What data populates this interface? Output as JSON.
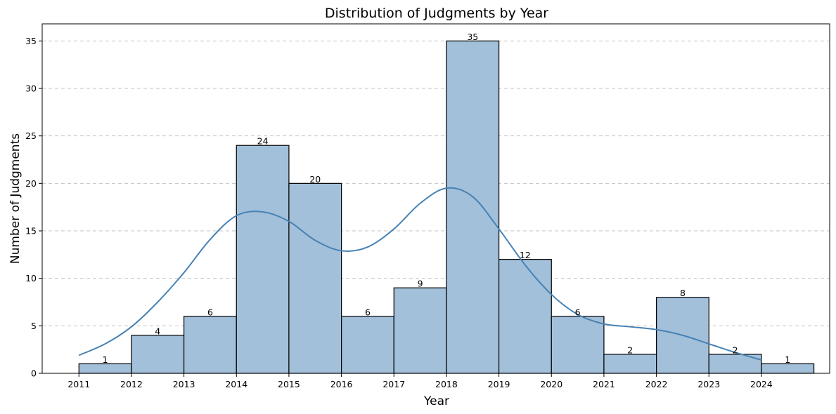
{
  "chart_data": {
    "type": "bar",
    "title": "Distribution of Judgments by Year",
    "xlabel": "Year",
    "ylabel": "Number of Judgments",
    "bin_edges": [
      2011,
      2012,
      2013,
      2014,
      2015,
      2016,
      2017,
      2018,
      2019,
      2020,
      2021,
      2022,
      2023,
      2024,
      2025
    ],
    "values": [
      1,
      4,
      6,
      24,
      20,
      6,
      9,
      35,
      12,
      6,
      2,
      8,
      2,
      1
    ],
    "data_labels": [
      "1",
      "4",
      "6",
      "24",
      "20",
      "6",
      "9",
      "35",
      "12",
      "6",
      "2",
      "8",
      "2",
      "1"
    ],
    "x_ticks": [
      "2011",
      "2012",
      "2013",
      "2014",
      "2015",
      "2016",
      "2017",
      "2018",
      "2019",
      "2020",
      "2021",
      "2022",
      "2023",
      "2024"
    ],
    "y_ticks": [
      "0",
      "5",
      "10",
      "15",
      "20",
      "25",
      "30",
      "35"
    ],
    "xlim": [
      2010.3,
      2025.3
    ],
    "ylim": [
      0,
      36.8
    ],
    "grid": "y-dashed",
    "colors": {
      "bar_fill": "#a3c0da",
      "bar_edge": "#000000",
      "kde_line": "#4682b4"
    },
    "kde": {
      "x": [
        2011,
        2011.5,
        2012,
        2012.5,
        2013,
        2013.5,
        2014,
        2014.5,
        2015,
        2015.5,
        2016,
        2016.5,
        2017,
        2017.5,
        2018,
        2018.5,
        2019,
        2019.5,
        2020,
        2020.5,
        2021,
        2021.5,
        2022,
        2022.5,
        2023,
        2023.5,
        2024
      ],
      "y": [
        1.9,
        3.1,
        4.9,
        7.5,
        10.6,
        14.1,
        16.6,
        17.0,
        16.0,
        14.0,
        12.9,
        13.3,
        15.2,
        17.9,
        19.5,
        18.6,
        15.2,
        11.4,
        8.3,
        6.2,
        5.2,
        4.9,
        4.6,
        4.0,
        3.1,
        2.2,
        1.4
      ]
    }
  }
}
